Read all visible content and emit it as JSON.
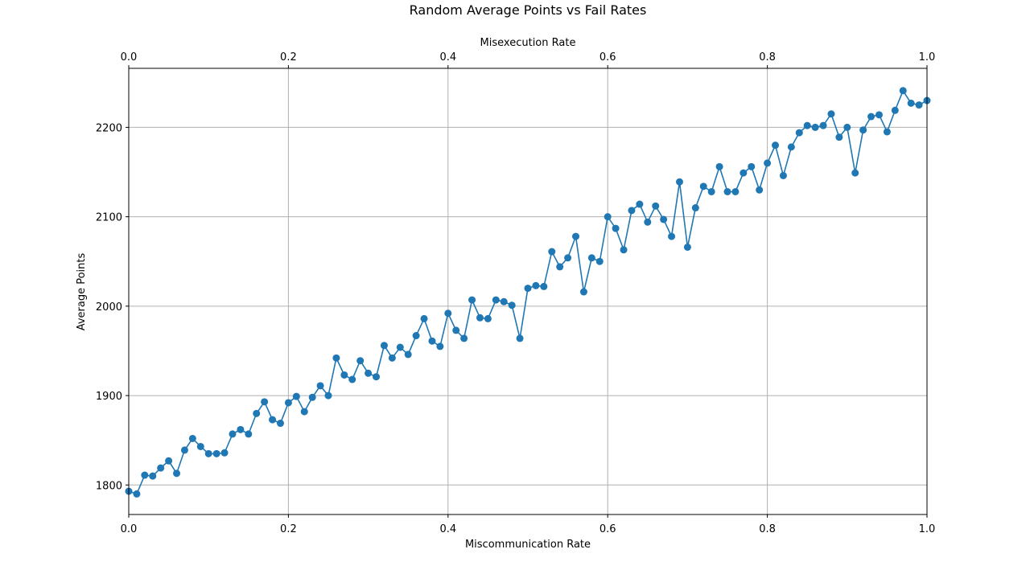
{
  "chart_data": {
    "type": "line",
    "title": "Random Average Points vs Fail Rates",
    "xlabel": "Miscommunication Rate",
    "x2label": "Misexecution Rate",
    "ylabel": "Average Points",
    "xlim": [
      0,
      1
    ],
    "ylim": [
      1767,
      2266
    ],
    "grid": true,
    "x_ticks": [
      0.0,
      0.2,
      0.4,
      0.6,
      0.8,
      1.0
    ],
    "x_tick_labels": [
      "0.0",
      "0.2",
      "0.4",
      "0.6",
      "0.8",
      "1.0"
    ],
    "x2_ticks": [
      0.0,
      0.2,
      0.4,
      0.6,
      0.8,
      1.0
    ],
    "x2_tick_labels": [
      "0.0",
      "0.2",
      "0.4",
      "0.6",
      "0.8",
      "1.0"
    ],
    "y_ticks": [
      1800,
      1900,
      2000,
      2100,
      2200
    ],
    "y_tick_labels": [
      "1800",
      "1900",
      "2000",
      "2100",
      "2200"
    ],
    "series": [
      {
        "color": "#1f77b4",
        "marker": "circle",
        "x": [
          0.0,
          0.01,
          0.02,
          0.03,
          0.04,
          0.05,
          0.06,
          0.07,
          0.08,
          0.09,
          0.1,
          0.11,
          0.12,
          0.13,
          0.14,
          0.15,
          0.16,
          0.17,
          0.18,
          0.19,
          0.2,
          0.21,
          0.22,
          0.23,
          0.24,
          0.25,
          0.26,
          0.27,
          0.28,
          0.29,
          0.3,
          0.31,
          0.32,
          0.33,
          0.34,
          0.35,
          0.36,
          0.37,
          0.38,
          0.39,
          0.4,
          0.41,
          0.42,
          0.43,
          0.44,
          0.45,
          0.46,
          0.47,
          0.48,
          0.49,
          0.5,
          0.51,
          0.52,
          0.53,
          0.54,
          0.55,
          0.56,
          0.57,
          0.58,
          0.59,
          0.6,
          0.61,
          0.62,
          0.63,
          0.64,
          0.65,
          0.66,
          0.67,
          0.68,
          0.69,
          0.7,
          0.71,
          0.72,
          0.73,
          0.74,
          0.75,
          0.76,
          0.77,
          0.78,
          0.79,
          0.8,
          0.81,
          0.82,
          0.83,
          0.84,
          0.85,
          0.86,
          0.87,
          0.88,
          0.89,
          0.9,
          0.91,
          0.92,
          0.93,
          0.94,
          0.95,
          0.96,
          0.97,
          0.98,
          0.99,
          1.0
        ],
        "y": [
          1793,
          1790,
          1811,
          1810,
          1819,
          1827,
          1813,
          1839,
          1852,
          1843,
          1835,
          1835,
          1836,
          1857,
          1862,
          1857,
          1880,
          1893,
          1873,
          1869,
          1892,
          1899,
          1882,
          1898,
          1911,
          1900,
          1942,
          1923,
          1918,
          1939,
          1925,
          1921,
          1956,
          1942,
          1954,
          1946,
          1967,
          1986,
          1961,
          1955,
          1992,
          1973,
          1964,
          2007,
          1987,
          1986,
          2007,
          2005,
          2001,
          1964,
          2020,
          2023,
          2022,
          2061,
          2044,
          2054,
          2078,
          2016,
          2054,
          2050,
          2100,
          2087,
          2063,
          2107,
          2114,
          2094,
          2112,
          2097,
          2078,
          2139,
          2066,
          2110,
          2134,
          2128,
          2156,
          2128,
          2128,
          2149,
          2156,
          2130,
          2160,
          2180,
          2146,
          2178,
          2194,
          2202,
          2200,
          2202,
          2215,
          2189,
          2200,
          2149,
          2197,
          2212,
          2214,
          2195,
          2219,
          2241,
          2227,
          2225,
          2230
        ]
      }
    ]
  }
}
